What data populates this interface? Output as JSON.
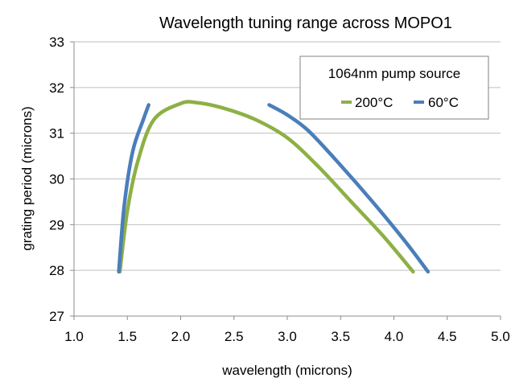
{
  "chart_data": {
    "type": "line",
    "title": "Wavelength tuning range across MOPO1",
    "xlabel": "wavelength (microns)",
    "ylabel": "grating period (microns)",
    "xlim": [
      1.0,
      5.0
    ],
    "ylim": [
      27,
      33
    ],
    "xticks": [
      "1.0",
      "1.5",
      "2.0",
      "2.5",
      "3.0",
      "3.5",
      "4.0",
      "4.5",
      "5.0"
    ],
    "yticks": [
      "27",
      "28",
      "29",
      "30",
      "31",
      "32",
      "33"
    ],
    "grid": "horizontal",
    "legend": {
      "title": "1064nm pump source",
      "position": "top-right"
    },
    "series": [
      {
        "name": "200°C",
        "color": "#8DB045",
        "x": [
          1.43,
          1.5,
          1.6,
          1.75,
          2.0,
          2.15,
          2.4,
          2.7,
          3.0,
          3.3,
          3.6,
          3.9,
          4.18
        ],
        "y": [
          27.97,
          29.3,
          30.4,
          31.3,
          31.65,
          31.67,
          31.55,
          31.3,
          30.9,
          30.25,
          29.5,
          28.75,
          27.97
        ]
      },
      {
        "name": "60°C",
        "color": "#4A7EBB",
        "x": [
          1.42,
          1.47,
          1.55,
          1.65,
          1.7
        ],
        "y": [
          27.97,
          29.4,
          30.6,
          31.3,
          31.62
        ]
      },
      {
        "name": "60°C",
        "color": "#4A7EBB",
        "x": [
          2.83,
          3.0,
          3.2,
          3.5,
          3.8,
          4.1,
          4.32
        ],
        "y": [
          31.62,
          31.4,
          31.05,
          30.3,
          29.5,
          28.65,
          27.97
        ]
      }
    ]
  }
}
